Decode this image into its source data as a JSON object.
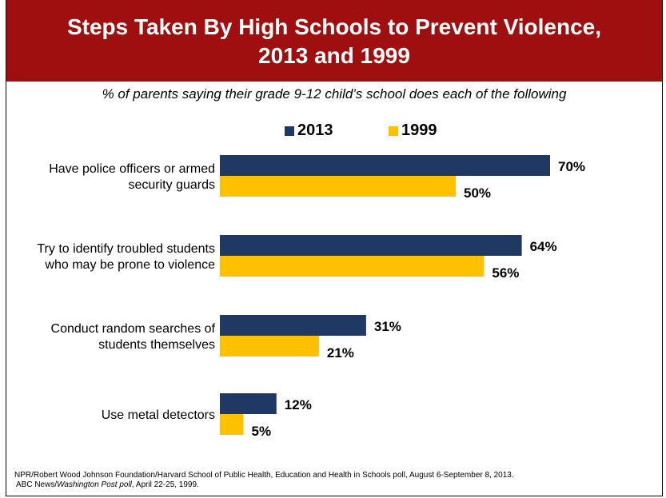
{
  "title": [
    "Steps Taken By High Schools to Prevent Violence,",
    "2013 and 1999"
  ],
  "subtitle": "% of parents saying their grade 9-12 child’s school does each of the following",
  "colors": {
    "banner": "#a00f0f",
    "series_2013": "#1f3864",
    "series_1999": "#ffc000"
  },
  "chart_data": {
    "type": "bar",
    "orientation": "horizontal",
    "categories": [
      [
        "Have police officers or armed",
        "security guards"
      ],
      [
        "Try to identify troubled students",
        "who may be prone to violence"
      ],
      [
        "Conduct random searches of",
        "students themselves"
      ],
      [
        "Use metal detectors"
      ]
    ],
    "series": [
      {
        "name": "2013",
        "values": [
          70,
          64,
          31,
          12
        ],
        "labels": [
          "70%",
          "64%",
          "31%",
          "12%"
        ]
      },
      {
        "name": "1999",
        "values": [
          50,
          56,
          21,
          5
        ],
        "labels": [
          "50%",
          "56%",
          "21%",
          "5%"
        ]
      }
    ],
    "xlim": [
      0,
      100
    ],
    "legend_position": "top-center"
  },
  "source": {
    "line1": "NPR/Robert Wood Johnson Foundation/Harvard School of Public Health, Education and Health in Schools poll, August 6-September 8, 2013.",
    "line2_prefix": "ABC News/",
    "line2_italic": "Washington Post poll",
    "line2_suffix": ", April 22-25, 1999."
  }
}
